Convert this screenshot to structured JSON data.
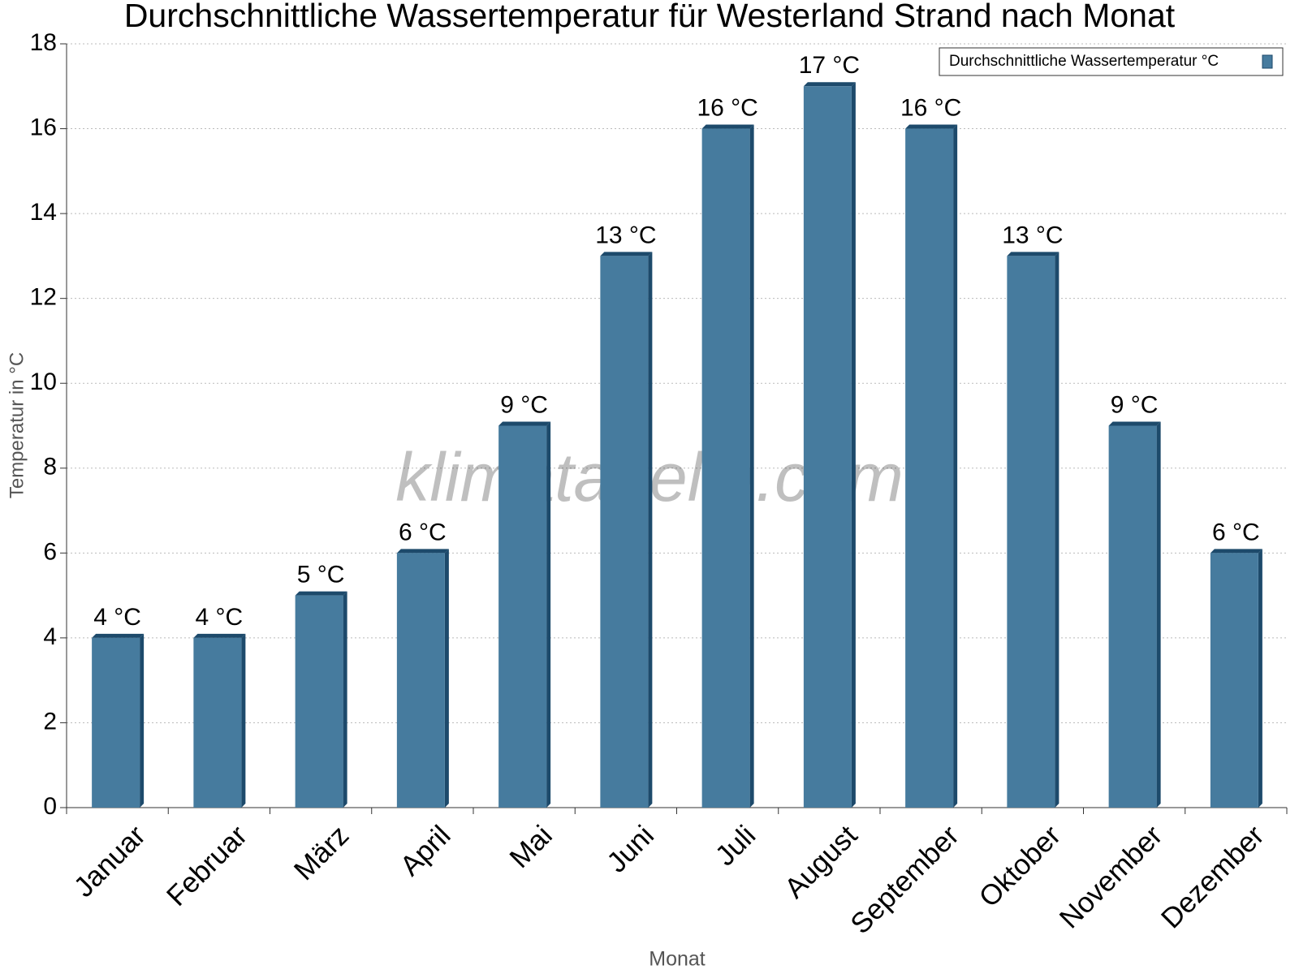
{
  "chart_data": {
    "type": "bar",
    "title": "Durchschnittliche Wassertemperatur für Westerland Strand nach Monat",
    "x_label": "Monat",
    "y_label": "Temperatur in °C",
    "watermark": "klimatabelle.com",
    "categories": [
      "Januar",
      "Februar",
      "März",
      "April",
      "Mai",
      "Juni",
      "Juli",
      "August",
      "September",
      "Oktober",
      "November",
      "Dezember"
    ],
    "series": [
      {
        "name": "Durchschnittliche Wassertemperatur °C",
        "color": "#467b9e",
        "values": [
          4,
          4,
          5,
          6,
          9,
          13,
          16,
          17,
          16,
          13,
          9,
          6
        ],
        "value_labels": [
          "4 °C",
          "4 °C",
          "5 °C",
          "6 °C",
          "9 °C",
          "13 °C",
          "16 °C",
          "17 °C",
          "16 °C",
          "13 °C",
          "9 °C",
          "6 °C"
        ]
      }
    ],
    "ylim": [
      0,
      18
    ],
    "yticks": [
      0,
      2,
      4,
      6,
      8,
      10,
      12,
      14,
      16,
      18
    ],
    "grid": true,
    "legend": "top-right"
  }
}
